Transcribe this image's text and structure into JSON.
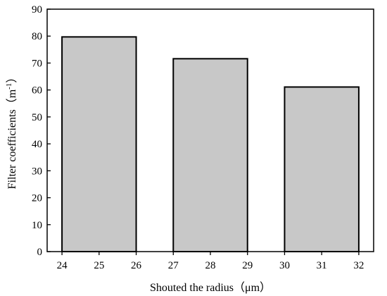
{
  "chart_data": {
    "type": "bar",
    "title": "",
    "xlabel": "Shouted the radius（μm）",
    "ylabel_main": "Filter coefficients（m",
    "ylabel_sup": "-1",
    "ylabel_end": "）",
    "x_ticks": [
      24,
      25,
      26,
      27,
      28,
      29,
      30,
      31,
      32
    ],
    "xlim": [
      23.6,
      32.4
    ],
    "y_ticks": [
      0,
      10,
      20,
      30,
      40,
      50,
      60,
      70,
      80,
      90
    ],
    "ylim": [
      0,
      90
    ],
    "bar_width": 2,
    "bars": [
      {
        "x": 25,
        "value": 79.7
      },
      {
        "x": 28,
        "value": 71.6
      },
      {
        "x": 31,
        "value": 61.1
      }
    ],
    "bar_color": "#c8c8c8",
    "grid": false,
    "legend": "none"
  }
}
